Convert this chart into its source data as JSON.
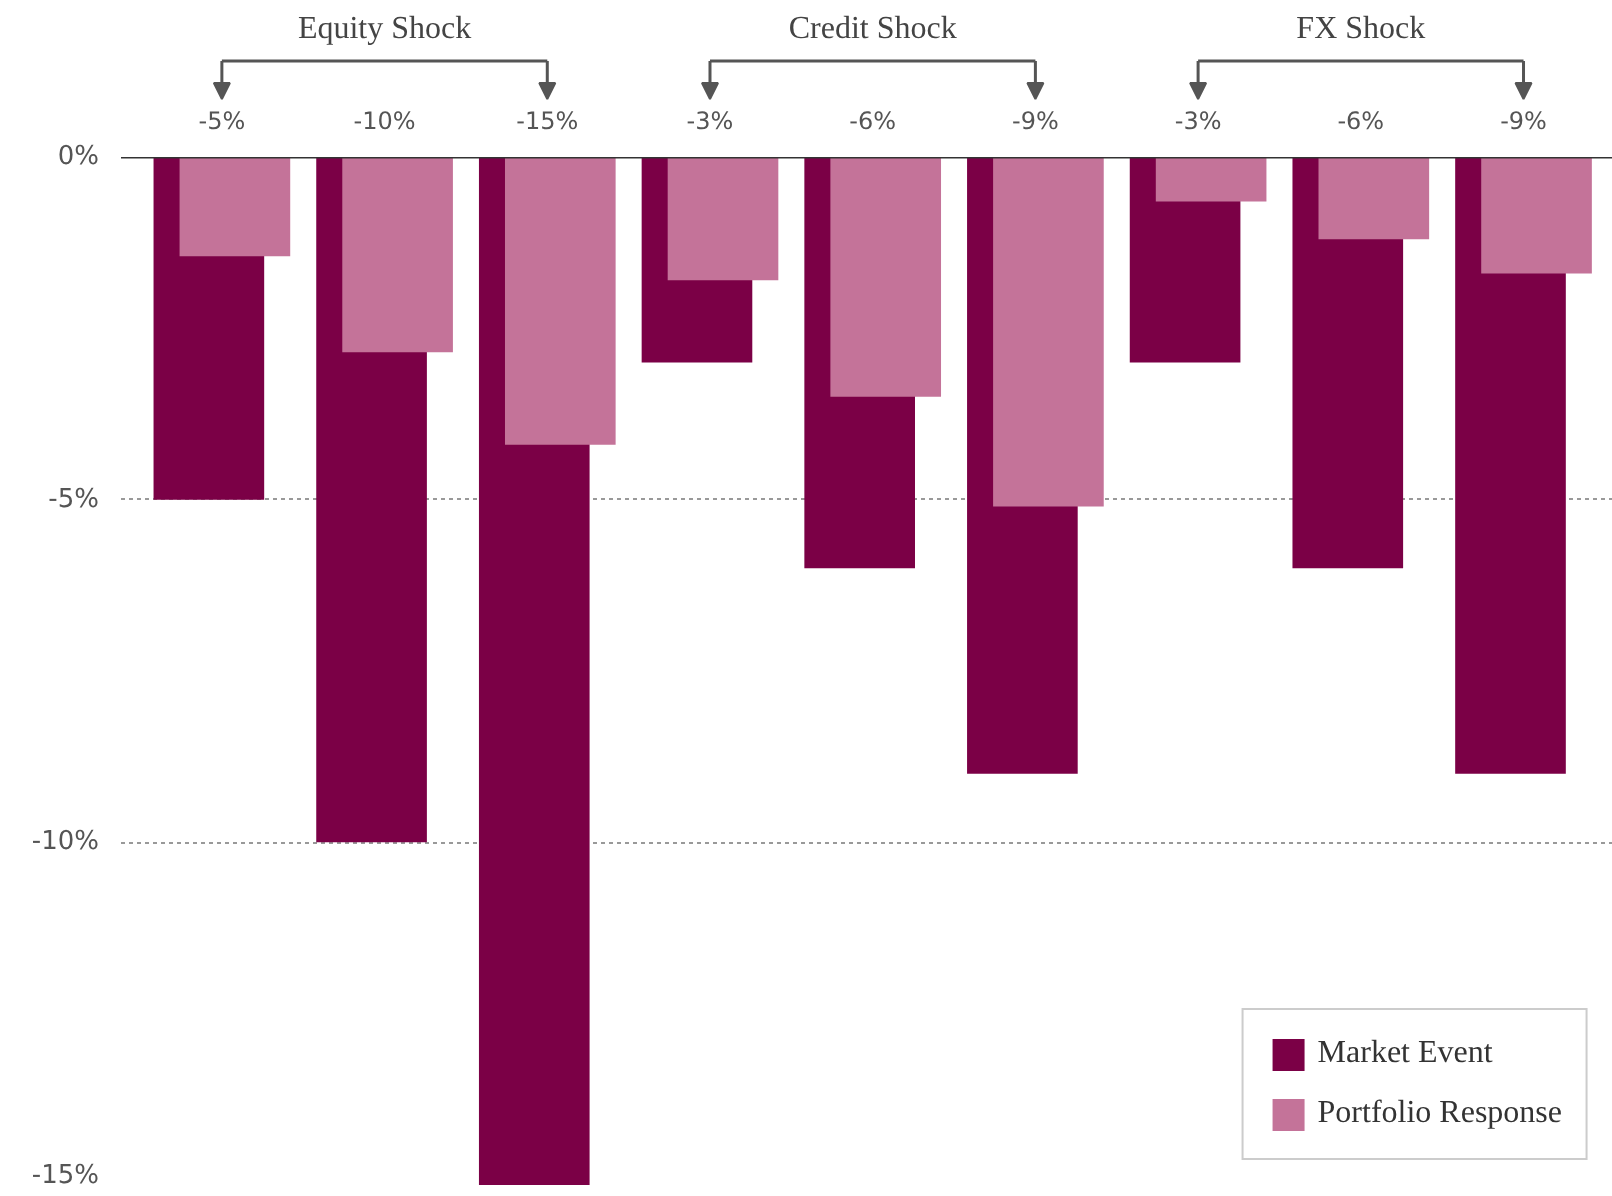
{
  "chart_data": {
    "type": "bar",
    "categories": [
      "-5%",
      "-10%",
      "-15%",
      "-3%",
      "-6%",
      "-9%",
      "-3%",
      "-6%",
      "-9%"
    ],
    "series": [
      {
        "name": "Market Event",
        "color": "#7b0046",
        "values": [
          -5,
          -10,
          -15,
          -3,
          -6,
          -9,
          -3,
          -6,
          -9
        ]
      },
      {
        "name": "Portfolio Response",
        "color": "#c47399",
        "values": [
          -1.45,
          -2.85,
          -4.2,
          -1.8,
          -3.5,
          -5.1,
          -0.65,
          -1.2,
          -1.7
        ]
      }
    ],
    "ylim": [
      -15,
      0
    ],
    "yticks": [
      {
        "value": 0,
        "label": "0%"
      },
      {
        "value": -5,
        "label": "-5%"
      },
      {
        "value": -10,
        "label": "-10%"
      },
      {
        "value": -15,
        "label": "-15%"
      }
    ],
    "grid": "y",
    "legend": "bottom right",
    "annotations": [
      "Equity Shock",
      "Credit Shock",
      "FX Shock"
    ]
  }
}
